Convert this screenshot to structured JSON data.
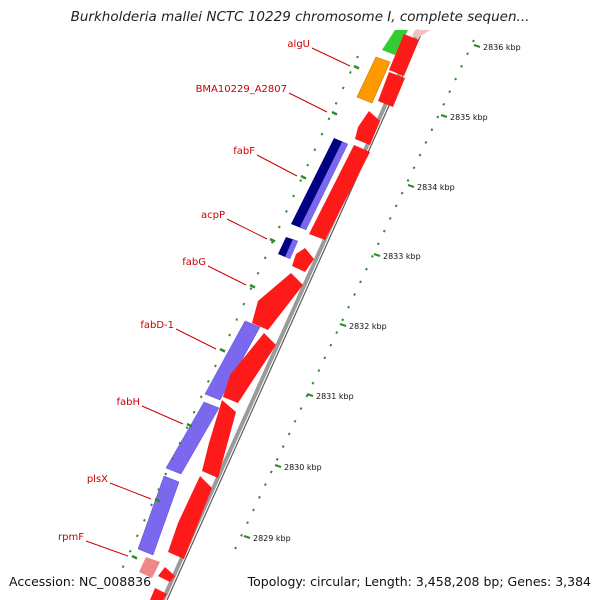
{
  "title": "Burkholderia mallei NCTC 10229 chromosome I, complete sequen...",
  "footer": {
    "accession": "Accession: NC_008836",
    "topology": "Topology: circular; Length: 3,458,208 bp; Genes: 3,384"
  },
  "colors": {
    "backbone": "#8a8a8a",
    "tick": "#2e8b2e",
    "label": "#cc0000",
    "forward_red": "#ff1a1a",
    "purple": "#7b68ee",
    "navy": "#000080",
    "orange": "#ff9900",
    "green": "#33cc33",
    "pink": "#ee8888"
  },
  "ticks": [
    {
      "label": "2836 kbp"
    },
    {
      "label": "2835 kbp"
    },
    {
      "label": "2834 kbp"
    },
    {
      "label": "2833 kbp"
    },
    {
      "label": "2832 kbp"
    },
    {
      "label": "2831 kbp"
    },
    {
      "label": "2830 kbp"
    },
    {
      "label": "2829 kbp"
    }
  ],
  "gene_labels": [
    {
      "label": "algU"
    },
    {
      "label": "BMA10229_A2807"
    },
    {
      "label": "fabF"
    },
    {
      "label": "acpP"
    },
    {
      "label": "fabG"
    },
    {
      "label": "fabD-1"
    },
    {
      "label": "fabH"
    },
    {
      "label": "plsX"
    },
    {
      "label": "rpmF"
    }
  ]
}
